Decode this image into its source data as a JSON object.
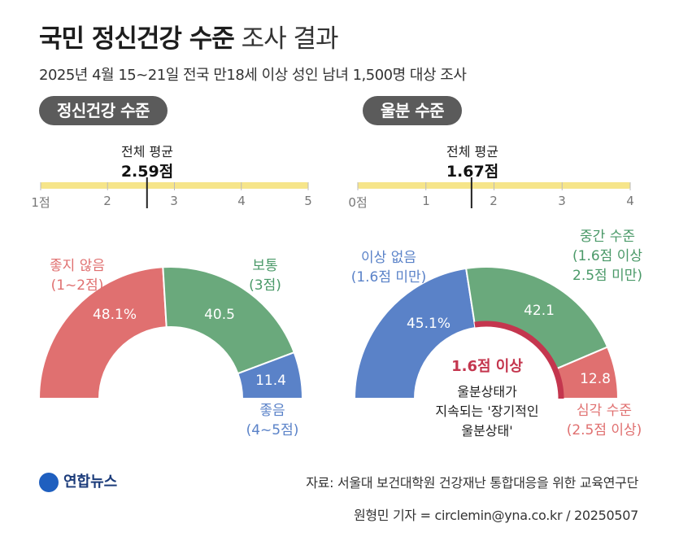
{
  "header": {
    "title_bold": "국민 정신건강 수준",
    "title_light": "조사 결과",
    "subtitle": "2025년 4월 15~21일 전국 만18세 이상 성인 남녀 1,500명 대상 조사"
  },
  "colors": {
    "red": "#e07070",
    "green": "#6aa97c",
    "blue": "#5a82c8",
    "bar": "#f6e58a",
    "accent_red": "#c4364e",
    "pill": "#5b5b5b"
  },
  "chart_data": [
    {
      "type": "pie",
      "variant": "semi-donut",
      "title": "정신건강 수준",
      "average": {
        "label": "전체 평균",
        "value": 2.59,
        "display": "2.59점"
      },
      "scale": {
        "min": 1,
        "max": 5,
        "ticks": [
          "1점",
          "2",
          "3",
          "4",
          "5"
        ]
      },
      "slices": [
        {
          "name": "좋지 않음",
          "range": "(1~2점)",
          "value": 48.1,
          "display": "48.1%",
          "color": "#e07070"
        },
        {
          "name": "보통",
          "range": "(3점)",
          "value": 40.5,
          "display": "40.5",
          "color": "#6aa97c"
        },
        {
          "name": "좋음",
          "range": "(4~5점)",
          "value": 11.4,
          "display": "11.4",
          "color": "#5a82c8"
        }
      ]
    },
    {
      "type": "pie",
      "variant": "semi-donut",
      "title": "울분 수준",
      "average": {
        "label": "전체 평균",
        "value": 1.67,
        "display": "1.67점"
      },
      "scale": {
        "min": 0,
        "max": 4,
        "ticks": [
          "0점",
          "1",
          "2",
          "3",
          "4"
        ]
      },
      "slices": [
        {
          "name": "이상 없음",
          "range": "(1.6점 미만)",
          "value": 45.1,
          "display": "45.1%",
          "color": "#5a82c8"
        },
        {
          "name": "중간 수준",
          "range": "(1.6점 이상\n2.5점 미만)",
          "value": 42.1,
          "display": "42.1",
          "color": "#6aa97c"
        },
        {
          "name": "심각 수준",
          "range": "(2.5점 이상)",
          "value": 12.8,
          "display": "12.8",
          "color": "#e07070"
        }
      ],
      "highlight": {
        "from_percent": 45.1,
        "title": "1.6점 이상",
        "text": "울분상태가\n지속되는 '장기적인\n울분상태'"
      }
    }
  ],
  "footer": {
    "logo_text": "연합뉴스",
    "source": "자료: 서울대 보건대학원 건강재난 통합대응을 위한 교육연구단",
    "credit": "원형민 기자 = circlemin@yna.co.kr / 20250507"
  }
}
